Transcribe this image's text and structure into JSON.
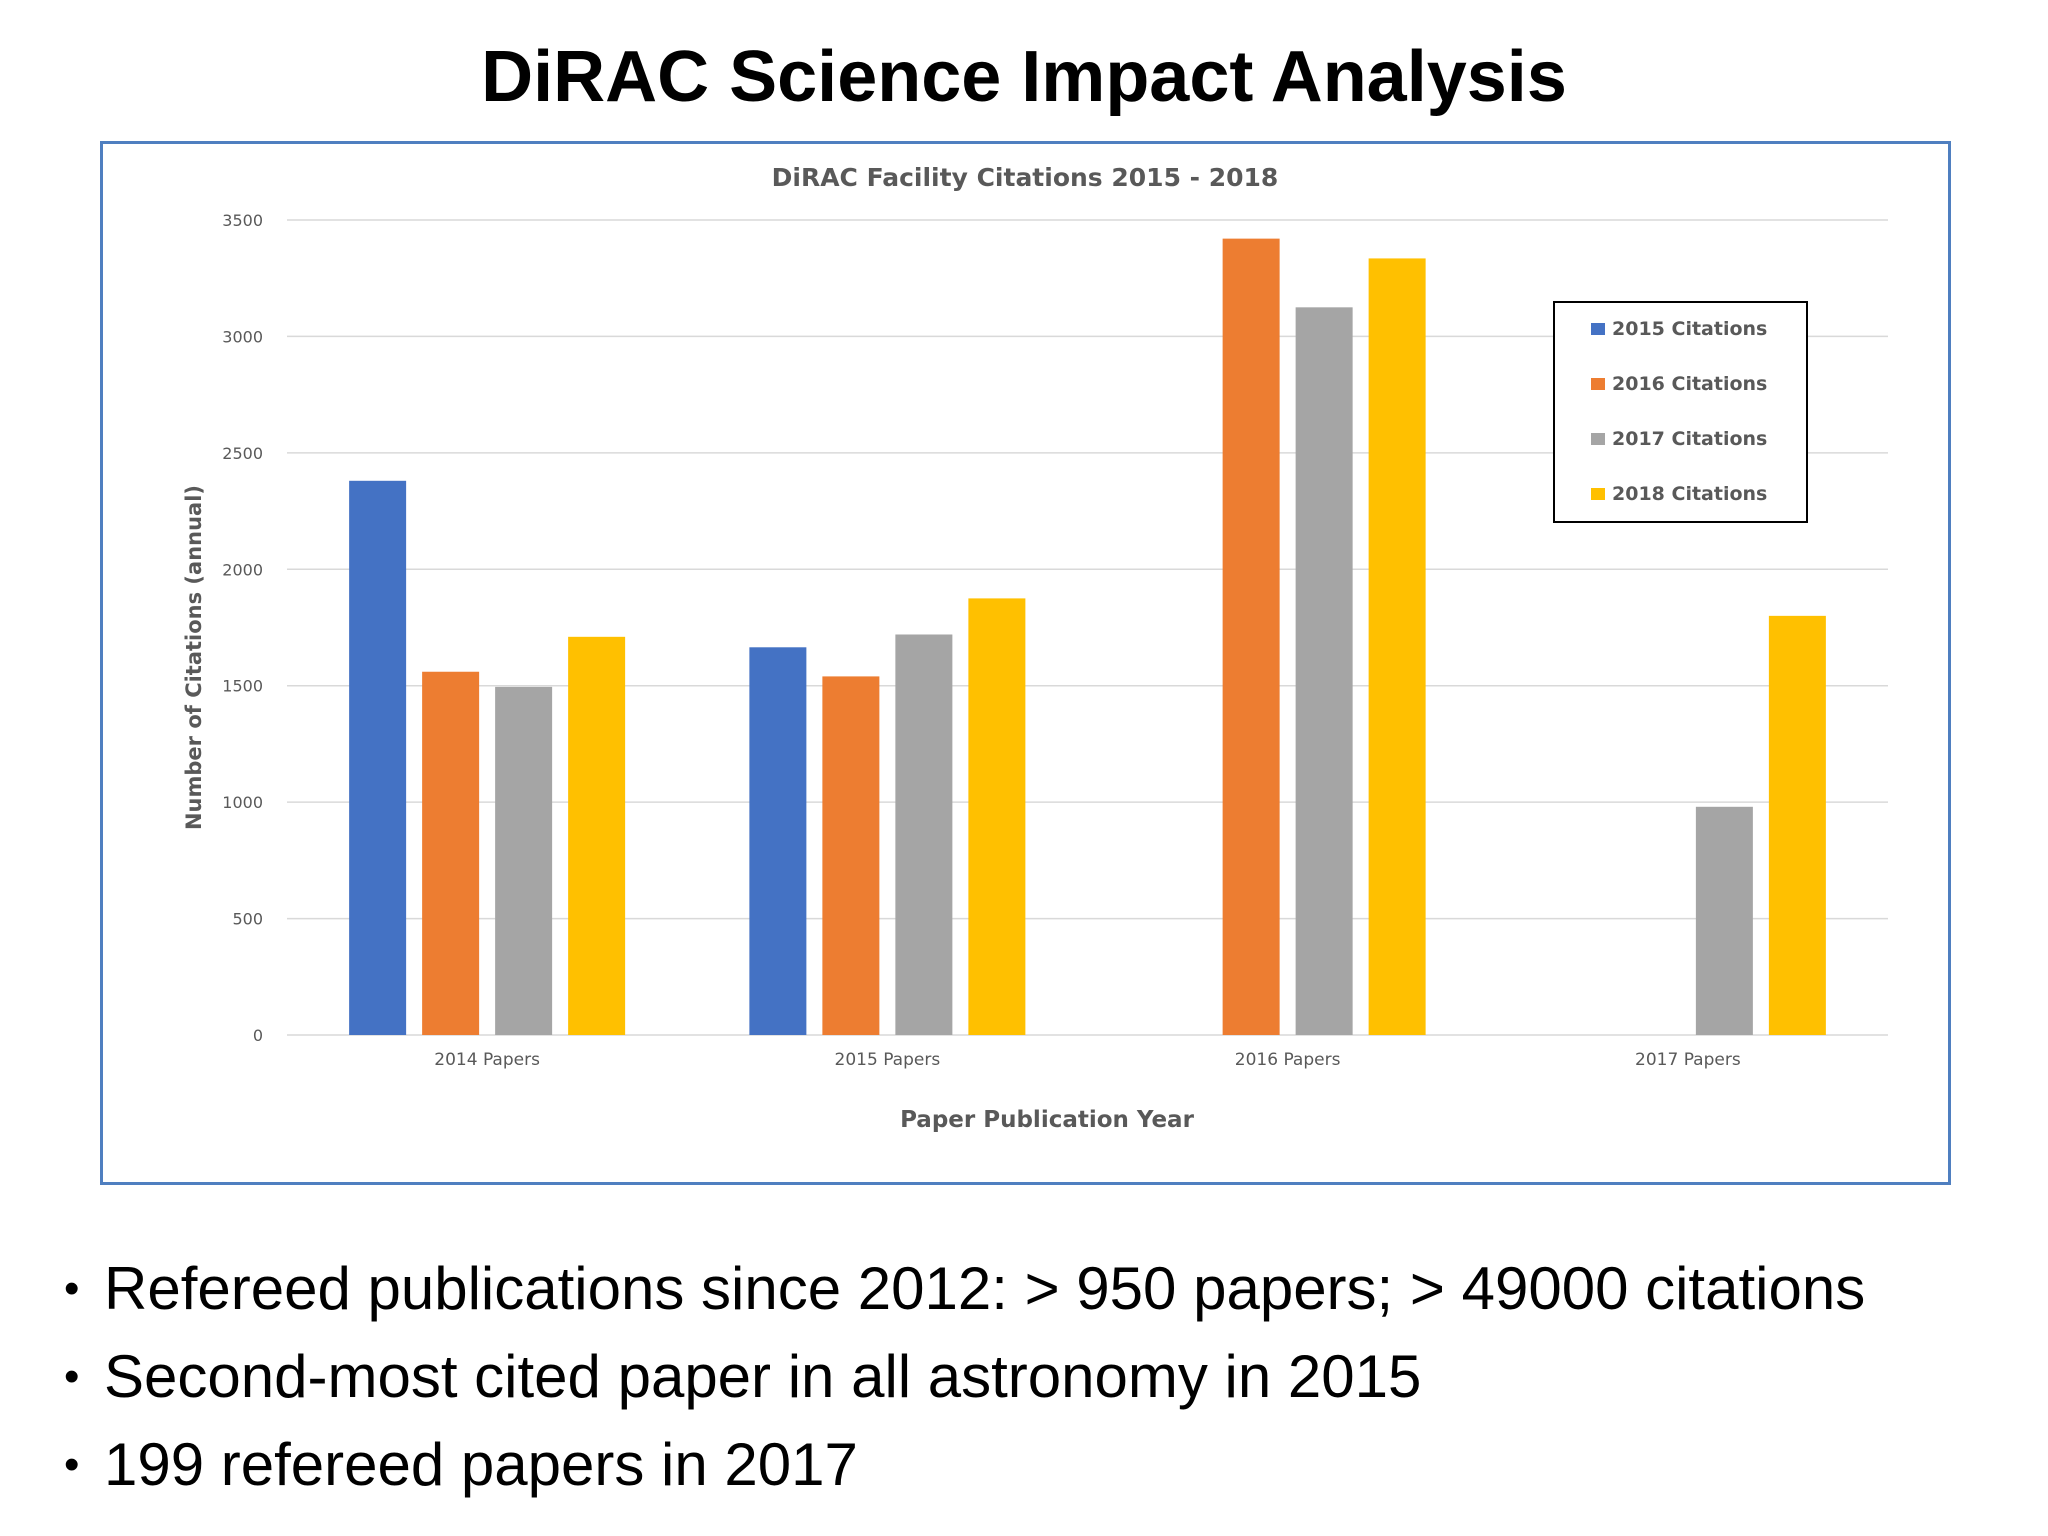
{
  "slide": {
    "title": "DiRAC Science Impact Analysis",
    "bullets": [
      "Refereed publications since 2012: > 950 papers; > 49000 citations",
      "Second-most cited paper in all astronomy in 2015",
      "199 refereed papers in 2017"
    ],
    "bullet_glyph": "•"
  },
  "colors": {
    "frame_border": "#4f7fc0",
    "grid": "#d9d9d9",
    "axis_text": "#595959",
    "legend_border": "#000000"
  },
  "chart_data": {
    "type": "bar",
    "title": "DiRAC Facility Citations 2015 - 2018",
    "xlabel": "Paper Publication Year",
    "ylabel": "Number of Citations (annual)",
    "ylim": [
      0,
      3500
    ],
    "yticks": [
      0,
      500,
      1000,
      1500,
      2000,
      2500,
      3000,
      3500
    ],
    "categories": [
      "2014 Papers",
      "2015 Papers",
      "2016 Papers",
      "2017 Papers"
    ],
    "series": [
      {
        "name": "2015 Citations",
        "color": "#4472c4",
        "values": [
          2380,
          1665,
          null,
          null
        ]
      },
      {
        "name": "2016 Citations",
        "color": "#ed7d31",
        "values": [
          1560,
          1540,
          3420,
          null
        ]
      },
      {
        "name": "2017 Citations",
        "color": "#a5a5a5",
        "values": [
          1495,
          1720,
          3125,
          980
        ]
      },
      {
        "name": "2018 Citations",
        "color": "#ffc000",
        "values": [
          1710,
          1875,
          3335,
          1800
        ]
      }
    ],
    "grid": true,
    "legend_position": "top-right"
  }
}
